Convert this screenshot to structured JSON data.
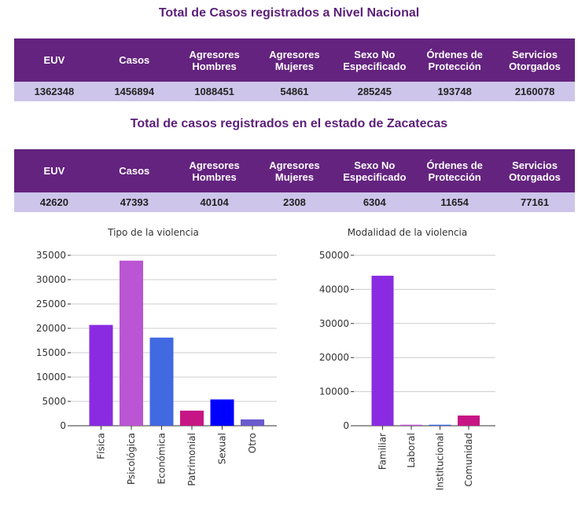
{
  "national": {
    "title": "Total de Casos registrados a Nivel Nacional",
    "headers": [
      "EUV",
      "Casos",
      "Agresores Hombres",
      "Agresores Mujeres",
      "Sexo No Especificado",
      "Órdenes de Protección",
      "Servicios Otorgados"
    ],
    "values": [
      "1362348",
      "1456894",
      "1088451",
      "54861",
      "285245",
      "193748",
      "2160078"
    ]
  },
  "state": {
    "title": "Total de casos registrados en el estado de Zacatecas",
    "headers": [
      "EUV",
      "Casos",
      "Agresores Hombres",
      "Agresores Mujeres",
      "Sexo No Especificado",
      "Órdenes de Protección",
      "Servicios Otorgados"
    ],
    "values": [
      "42620",
      "47393",
      "40104",
      "2308",
      "6304",
      "11654",
      "77161"
    ]
  },
  "colors": {
    "header_bg": "#64237f",
    "row_bg": "#cdc5ea",
    "title_text": "#5b1f78"
  },
  "chart_data": [
    {
      "type": "bar",
      "title": "Tipo de la violencia",
      "xlabel": "",
      "ylabel": "",
      "categories": [
        "Física",
        "Psicológica",
        "Económica",
        "Patrimonial",
        "Sexual",
        "Otro"
      ],
      "values": [
        20700,
        33900,
        18100,
        3100,
        5400,
        1300
      ],
      "colors": [
        "#8a2be2",
        "#ba55d3",
        "#4169e1",
        "#c71585",
        "#0000ff",
        "#6a5acd"
      ],
      "ylim": [
        0,
        35000
      ],
      "yticks": [
        0,
        5000,
        10000,
        15000,
        20000,
        25000,
        30000,
        35000
      ],
      "grid": true
    },
    {
      "type": "bar",
      "title": "Modalidad de la violencia",
      "xlabel": "",
      "ylabel": "",
      "categories": [
        "Familiar",
        "Laboral",
        "Institucional",
        "Comunidad"
      ],
      "values": [
        44000,
        300,
        300,
        3000
      ],
      "colors": [
        "#8a2be2",
        "#ba55d3",
        "#4169e1",
        "#c71585"
      ],
      "ylim": [
        0,
        50000
      ],
      "yticks": [
        0,
        10000,
        20000,
        30000,
        40000,
        50000
      ],
      "grid": true
    }
  ]
}
